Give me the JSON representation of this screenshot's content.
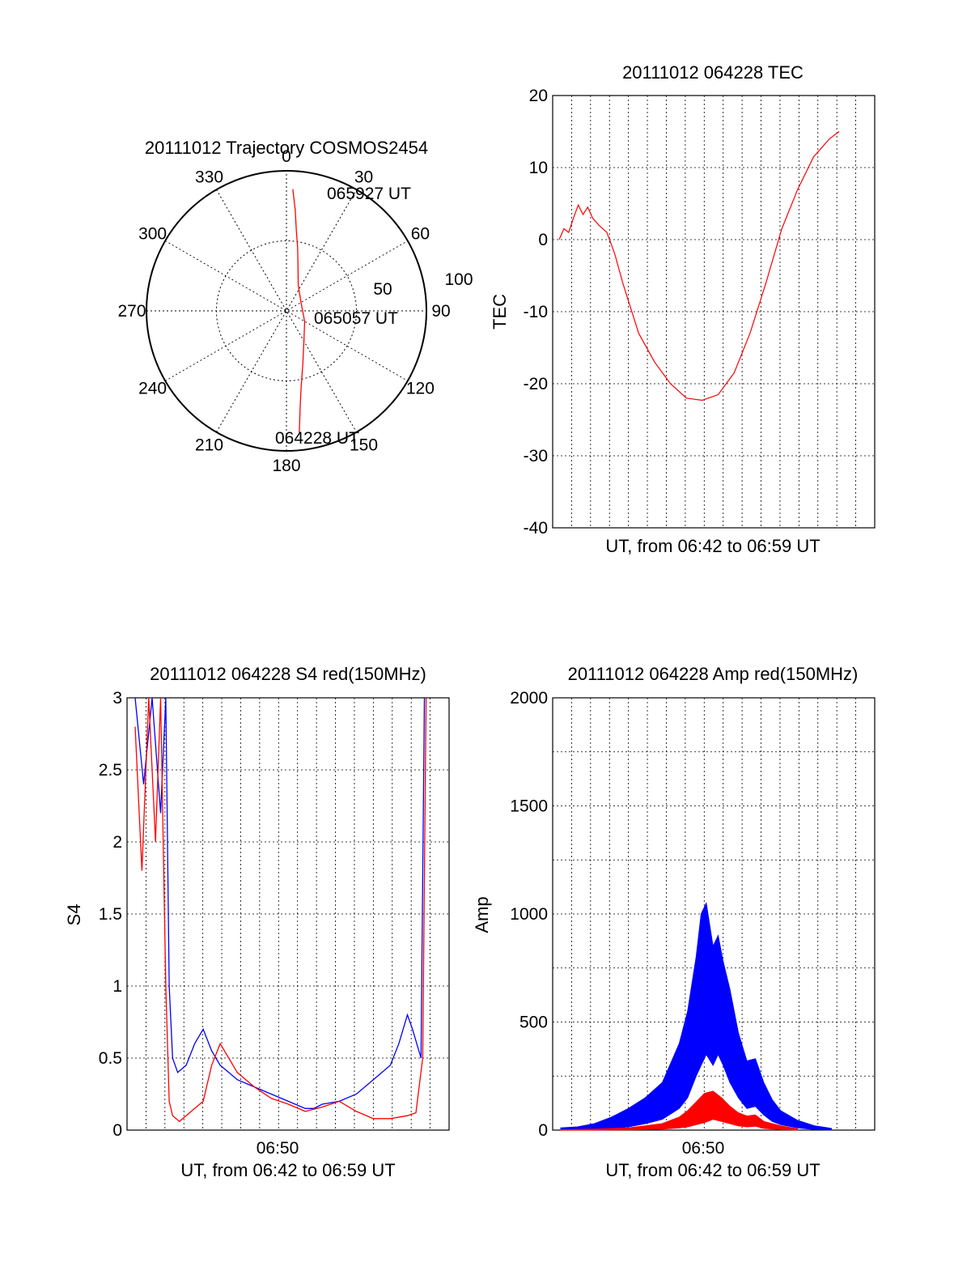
{
  "chart_data": [
    {
      "type": "polar",
      "title": "20111012 Trajectory COSMOS2454",
      "azimuth_tick_labels": [
        "0",
        "30",
        "60",
        "90",
        "120",
        "150",
        "180",
        "210",
        "240",
        "270",
        "300",
        "330"
      ],
      "radial_tick_labels": [
        "50",
        "100"
      ],
      "rlim": [
        0,
        100
      ],
      "grid": true,
      "series": [
        {
          "color": "#ff0000",
          "points": [
            {
              "az": 3,
              "r": 87
            },
            {
              "az": 5,
              "r": 72
            },
            {
              "az": 7,
              "r": 58
            },
            {
              "az": 10,
              "r": 46
            },
            {
              "az": 15,
              "r": 32
            },
            {
              "az": 25,
              "r": 20
            },
            {
              "az": 60,
              "r": 12
            },
            {
              "az": 120,
              "r": 15
            },
            {
              "az": 150,
              "r": 25
            },
            {
              "az": 163,
              "r": 40
            },
            {
              "az": 169,
              "r": 55
            },
            {
              "az": 172,
              "r": 70
            },
            {
              "az": 174,
              "r": 88
            }
          ]
        }
      ],
      "annotations": [
        {
          "text": "065927 UT",
          "az": 3,
          "r": 87
        },
        {
          "text": "065057 UT",
          "az": 100,
          "r": 18
        },
        {
          "text": "064228 UT",
          "az": 174,
          "r": 88
        }
      ]
    },
    {
      "type": "line",
      "title": "20111012 064228 TEC",
      "ylabel": "TEC",
      "xlabel": "UT, from 06:42 to 06:59 UT",
      "ylim": [
        -40,
        20
      ],
      "yticks": [
        "20",
        "10",
        "0",
        "-10",
        "-20",
        "-30",
        "-40"
      ],
      "grid": true,
      "series": [
        {
          "color": "#ff0000",
          "x_minutes": [
            0,
            0.3,
            0.6,
            0.9,
            1.2,
            1.5,
            1.8,
            2.1,
            2.5,
            3.0,
            3.5,
            4.0,
            5.0,
            6.0,
            7.0,
            8.0,
            9.0,
            10.0,
            10.5,
            11.0,
            12.0,
            13.0,
            14.0,
            15.0,
            16.0,
            17.0,
            17.6
          ],
          "values": [
            0,
            1.5,
            1.0,
            3.0,
            4.8,
            3.5,
            4.5,
            3.0,
            2.0,
            1.0,
            -2.0,
            -6.0,
            -13.0,
            -17.0,
            -20.0,
            -22.0,
            -22.3,
            -21.5,
            -20.0,
            -18.5,
            -13.0,
            -6.0,
            1.5,
            7.0,
            11.5,
            14.0,
            15.0
          ]
        }
      ]
    },
    {
      "type": "line",
      "title": "20111012 064228 S4 red(150MHz)",
      "ylabel": "S4",
      "xlabel": "UT, from 06:42 to 06:59 UT",
      "xtick_label": "06:50",
      "ylim": [
        0,
        3
      ],
      "yticks": [
        "3",
        "2.5",
        "2",
        "1.5",
        "1",
        "0.5",
        "0"
      ],
      "grid": true,
      "series": [
        {
          "color": "#0000ff",
          "x_minutes": [
            0.0,
            0.5,
            1.0,
            1.5,
            1.8,
            2.0,
            2.2,
            2.5,
            3.0,
            3.5,
            4.0,
            4.5,
            5.0,
            5.5,
            6.0,
            7.0,
            8.0,
            9.0,
            10.0,
            10.5,
            11.0,
            12.0,
            13.0,
            14.0,
            15.0,
            15.5,
            16.0,
            16.3,
            16.8,
            17.0
          ],
          "values": [
            3.0,
            2.4,
            3.0,
            2.2,
            3.0,
            1.0,
            0.5,
            0.4,
            0.45,
            0.6,
            0.7,
            0.55,
            0.45,
            0.4,
            0.35,
            0.3,
            0.25,
            0.2,
            0.15,
            0.15,
            0.18,
            0.2,
            0.25,
            0.35,
            0.45,
            0.6,
            0.8,
            0.7,
            0.5,
            3.0
          ]
        },
        {
          "color": "#ff0000",
          "x_minutes": [
            0.0,
            0.4,
            0.8,
            1.2,
            1.5,
            1.8,
            2.0,
            2.2,
            2.6,
            3.0,
            3.5,
            4.0,
            4.5,
            5.0,
            5.5,
            6.0,
            7.0,
            8.0,
            9.0,
            10.0,
            11.0,
            12.0,
            13.0,
            14.0,
            15.0,
            16.0,
            16.5,
            16.9,
            17.1
          ],
          "values": [
            2.8,
            1.8,
            3.0,
            2.0,
            3.0,
            1.0,
            0.2,
            0.1,
            0.06,
            0.1,
            0.15,
            0.2,
            0.45,
            0.6,
            0.5,
            0.4,
            0.3,
            0.22,
            0.18,
            0.13,
            0.16,
            0.2,
            0.13,
            0.08,
            0.08,
            0.1,
            0.12,
            0.5,
            3.0
          ]
        }
      ]
    },
    {
      "type": "line",
      "title": "20111012 064228 Amp red(150MHz)",
      "ylabel": "Amp",
      "xlabel": "UT, from 06:42 to 06:59 UT",
      "xtick_label": "06:50",
      "ylim": [
        0,
        2000
      ],
      "yticks": [
        "2000",
        "1500",
        "1000",
        "500",
        "0"
      ],
      "grid": true,
      "series": [
        {
          "color": "#0000ff",
          "x_minutes": [
            0,
            1,
            2,
            3,
            4,
            5,
            6,
            7,
            7.5,
            8.0,
            8.3,
            8.6,
            9.0,
            9.3,
            9.6,
            10.0,
            10.5,
            11.0,
            11.5,
            12.0,
            12.5,
            13.0,
            14.0,
            15.0,
            16.0
          ],
          "values": [
            5,
            8,
            15,
            30,
            60,
            90,
            130,
            250,
            350,
            500,
            650,
            750,
            600,
            700,
            580,
            450,
            300,
            220,
            250,
            150,
            90,
            60,
            30,
            10,
            5
          ],
          "upper_envelope": [
            10,
            15,
            30,
            60,
            100,
            150,
            220,
            400,
            550,
            800,
            1000,
            1050,
            850,
            900,
            780,
            650,
            450,
            320,
            330,
            220,
            140,
            90,
            45,
            20,
            8
          ],
          "lower_envelope": [
            0,
            2,
            5,
            8,
            15,
            30,
            50,
            100,
            150,
            250,
            300,
            350,
            300,
            350,
            300,
            220,
            150,
            100,
            110,
            70,
            40,
            25,
            10,
            3,
            0
          ]
        },
        {
          "color": "#ff0000",
          "x_minutes": [
            0,
            2,
            4,
            5,
            6,
            7,
            7.5,
            8.0,
            8.5,
            9.0,
            9.5,
            10.0,
            10.5,
            11.0,
            11.5,
            12.0,
            13.0,
            14.0
          ],
          "values": [
            0,
            2,
            5,
            10,
            15,
            30,
            45,
            70,
            90,
            120,
            90,
            70,
            50,
            40,
            45,
            20,
            10,
            3
          ],
          "upper_envelope": [
            2,
            5,
            10,
            20,
            30,
            60,
            90,
            130,
            170,
            180,
            150,
            110,
            80,
            65,
            70,
            40,
            20,
            6
          ],
          "lower_envelope": [
            0,
            0,
            1,
            3,
            5,
            10,
            15,
            25,
            35,
            50,
            40,
            30,
            20,
            15,
            18,
            8,
            3,
            0
          ]
        }
      ]
    }
  ]
}
